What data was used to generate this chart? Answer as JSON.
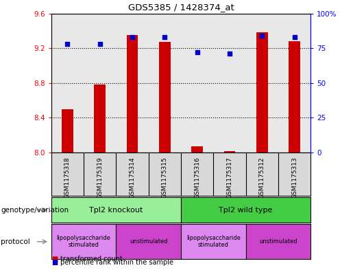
{
  "title": "GDS5385 / 1428374_at",
  "samples": [
    "GSM1175318",
    "GSM1175319",
    "GSM1175314",
    "GSM1175315",
    "GSM1175316",
    "GSM1175317",
    "GSM1175312",
    "GSM1175313"
  ],
  "transformed_count": [
    8.5,
    8.78,
    9.35,
    9.27,
    8.07,
    8.02,
    9.38,
    9.28
  ],
  "percentile_rank": [
    78,
    78,
    83,
    83,
    72,
    71,
    84,
    83
  ],
  "ylim_left": [
    8.0,
    9.6
  ],
  "ylim_right": [
    0,
    100
  ],
  "yticks_left": [
    8.0,
    8.4,
    8.8,
    9.2,
    9.6
  ],
  "yticks_right": [
    0,
    25,
    50,
    75,
    100
  ],
  "ytick_labels_right": [
    "0",
    "25",
    "50",
    "75",
    "100%"
  ],
  "bar_color": "#cc0000",
  "dot_color": "#0000cc",
  "group1_label": "Tpl2 knockout",
  "group2_label": "Tpl2 wild type",
  "group1_color": "#99ee99",
  "group2_color": "#44cc44",
  "protocol1_label": "lipopolysaccharide\nstimulated",
  "protocol2_label": "unstimulated",
  "protocol_color1": "#dd88ee",
  "protocol_color2": "#cc44cc",
  "genotype_label": "genotype/variation",
  "protocol_label": "protocol",
  "legend1": "transformed count",
  "legend2": "percentile rank within the sample",
  "bar_bottom": 8.0,
  "n_samples": 8,
  "boundary": 4
}
